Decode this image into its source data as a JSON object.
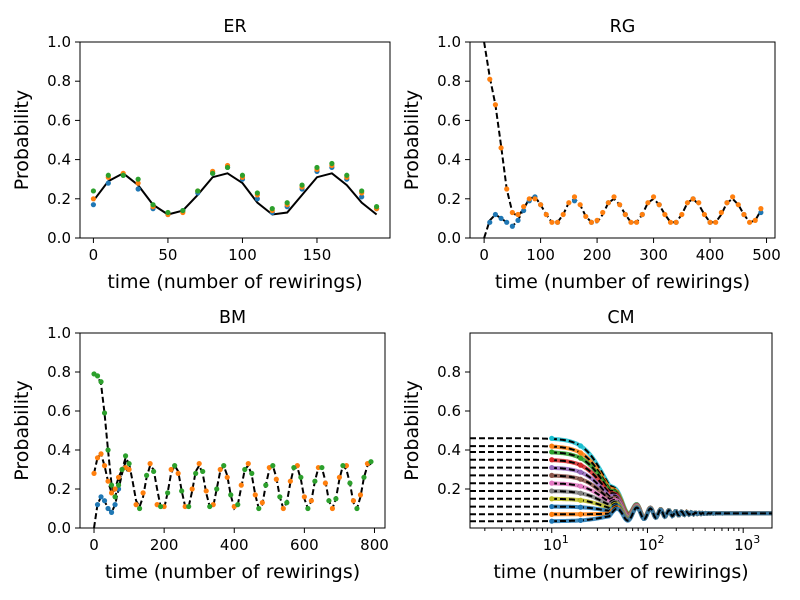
{
  "chart_data": [
    {
      "type": "line",
      "title": "ER",
      "xlabel": "time (number of rewirings)",
      "ylabel": "Probability",
      "xlim": [
        -9,
        199
      ],
      "ylim": [
        0,
        1
      ],
      "xscale": "linear",
      "xticks": [
        0,
        50,
        100,
        150
      ],
      "yticks": [
        0,
        0.2,
        0.4,
        0.6,
        0.8,
        1.0
      ],
      "x_tick_labels": [
        "0",
        "50",
        "100",
        "150"
      ],
      "y_tick_labels": [
        "0.0",
        "0.2",
        "0.4",
        "0.6",
        "0.8",
        "1.0"
      ],
      "series": [
        {
          "name": "model",
          "style": "solid",
          "color": "#000000",
          "x": [
            0,
            10,
            20,
            30,
            40,
            50,
            60,
            70,
            80,
            90,
            100,
            110,
            120,
            130,
            140,
            150,
            160,
            170,
            180,
            190
          ],
          "y": [
            0.19,
            0.29,
            0.33,
            0.27,
            0.17,
            0.12,
            0.14,
            0.22,
            0.31,
            0.33,
            0.28,
            0.18,
            0.12,
            0.13,
            0.22,
            0.31,
            0.33,
            0.27,
            0.18,
            0.12
          ]
        },
        {
          "name": "sim-blue",
          "style": "markers",
          "color": "#1f77b4",
          "x": [
            0,
            10,
            20,
            30,
            40,
            50,
            60,
            70,
            80,
            90,
            100,
            110,
            120,
            130,
            140,
            150,
            160,
            170,
            180,
            190
          ],
          "y": [
            0.17,
            0.28,
            0.32,
            0.25,
            0.15,
            0.12,
            0.14,
            0.23,
            0.33,
            0.36,
            0.3,
            0.2,
            0.13,
            0.16,
            0.25,
            0.34,
            0.36,
            0.3,
            0.21,
            0.15
          ]
        },
        {
          "name": "sim-orange",
          "style": "markers",
          "color": "#ff7f0e",
          "x": [
            0,
            10,
            20,
            30,
            40,
            50,
            60,
            70,
            80,
            90,
            100,
            110,
            120,
            130,
            140,
            150,
            160,
            170,
            180,
            190
          ],
          "y": [
            0.2,
            0.31,
            0.33,
            0.28,
            0.16,
            0.12,
            0.13,
            0.24,
            0.34,
            0.37,
            0.31,
            0.22,
            0.14,
            0.17,
            0.26,
            0.35,
            0.37,
            0.31,
            0.23,
            0.15
          ]
        },
        {
          "name": "sim-green",
          "style": "markers",
          "color": "#2ca02c",
          "x": [
            0,
            10,
            20,
            30,
            40,
            50,
            60,
            70,
            80,
            90,
            100,
            110,
            120,
            130,
            140,
            150,
            160,
            170,
            180,
            190
          ],
          "y": [
            0.24,
            0.32,
            0.32,
            0.3,
            0.17,
            0.13,
            0.14,
            0.24,
            0.33,
            0.36,
            0.32,
            0.23,
            0.15,
            0.18,
            0.27,
            0.36,
            0.38,
            0.32,
            0.24,
            0.16
          ]
        }
      ]
    },
    {
      "type": "line",
      "title": "RG",
      "xlabel": "time (number of rewirings)",
      "ylabel": "Probability",
      "xlim": [
        -25,
        515
      ],
      "ylim": [
        0,
        1
      ],
      "xscale": "linear",
      "xticks": [
        0,
        100,
        200,
        300,
        400,
        500
      ],
      "yticks": [
        0,
        0.2,
        0.4,
        0.6,
        0.8,
        1.0
      ],
      "x_tick_labels": [
        "0",
        "100",
        "200",
        "300",
        "400",
        "500"
      ],
      "y_tick_labels": [
        "0.0",
        "0.2",
        "0.4",
        "0.6",
        "0.8",
        "1.0"
      ],
      "series": [
        {
          "name": "model-high",
          "style": "dashed",
          "color": "#000000",
          "x": [
            0,
            10,
            20,
            30,
            40,
            50,
            60,
            70,
            80,
            90,
            100,
            110,
            120,
            130,
            140,
            150,
            160,
            170,
            180,
            190,
            200,
            210,
            220,
            230,
            240,
            250,
            260,
            270,
            280,
            290,
            300,
            310,
            320,
            330,
            340,
            350,
            360,
            370,
            380,
            390,
            400,
            410,
            420,
            430,
            440,
            450,
            460,
            470,
            480,
            490
          ],
          "y": [
            1.0,
            0.82,
            0.68,
            0.47,
            0.25,
            0.13,
            0.11,
            0.15,
            0.2,
            0.21,
            0.17,
            0.12,
            0.08,
            0.08,
            0.12,
            0.18,
            0.2,
            0.17,
            0.11,
            0.08,
            0.08,
            0.12,
            0.18,
            0.2,
            0.17,
            0.12,
            0.08,
            0.08,
            0.12,
            0.18,
            0.2,
            0.17,
            0.12,
            0.08,
            0.08,
            0.12,
            0.18,
            0.2,
            0.17,
            0.12,
            0.08,
            0.08,
            0.12,
            0.18,
            0.2,
            0.17,
            0.12,
            0.08,
            0.09,
            0.14
          ]
        },
        {
          "name": "model-low",
          "style": "dashed",
          "color": "#000000",
          "x": [
            0,
            10,
            20,
            30,
            40,
            50,
            60,
            70,
            80,
            90
          ],
          "y": [
            0.0,
            0.09,
            0.12,
            0.1,
            0.08,
            0.06,
            0.09,
            0.15,
            0.2,
            0.21
          ]
        },
        {
          "name": "sim-blue",
          "style": "markers",
          "color": "#1f77b4",
          "x": [
            10,
            20,
            30,
            40,
            50,
            60,
            70,
            80,
            90,
            100,
            130,
            160,
            190,
            220,
            250,
            280,
            310,
            340,
            370,
            400,
            430,
            460,
            490
          ],
          "y": [
            0.08,
            0.12,
            0.1,
            0.08,
            0.06,
            0.09,
            0.14,
            0.19,
            0.21,
            0.17,
            0.08,
            0.19,
            0.08,
            0.18,
            0.12,
            0.12,
            0.17,
            0.08,
            0.2,
            0.08,
            0.18,
            0.12,
            0.13
          ]
        },
        {
          "name": "sim-orange",
          "style": "markers",
          "color": "#ff7f0e",
          "x": [
            10,
            20,
            30,
            40,
            50,
            60,
            70,
            80,
            90,
            100,
            110,
            120,
            130,
            140,
            150,
            160,
            170,
            180,
            190,
            200,
            210,
            220,
            230,
            240,
            250,
            260,
            270,
            280,
            290,
            300,
            310,
            320,
            330,
            340,
            350,
            360,
            370,
            380,
            390,
            400,
            410,
            420,
            430,
            440,
            450,
            460,
            470,
            480,
            490
          ],
          "y": [
            0.81,
            0.68,
            0.46,
            0.25,
            0.13,
            0.12,
            0.16,
            0.2,
            0.2,
            0.17,
            0.12,
            0.08,
            0.08,
            0.12,
            0.18,
            0.21,
            0.17,
            0.11,
            0.08,
            0.09,
            0.13,
            0.18,
            0.21,
            0.17,
            0.12,
            0.08,
            0.08,
            0.12,
            0.18,
            0.21,
            0.17,
            0.12,
            0.08,
            0.08,
            0.12,
            0.18,
            0.2,
            0.18,
            0.12,
            0.08,
            0.08,
            0.13,
            0.18,
            0.21,
            0.17,
            0.12,
            0.08,
            0.09,
            0.15
          ]
        }
      ]
    },
    {
      "type": "line",
      "title": "BM",
      "xlabel": "time (number of rewirings)",
      "ylabel": "Probability",
      "xlim": [
        -40,
        830
      ],
      "ylim": [
        0,
        1
      ],
      "xscale": "linear",
      "xticks": [
        0,
        200,
        400,
        600,
        800
      ],
      "yticks": [
        0,
        0.2,
        0.4,
        0.6,
        0.8,
        1.0
      ],
      "x_tick_labels": [
        "0",
        "200",
        "400",
        "600",
        "800"
      ],
      "y_tick_labels": [
        "0.0",
        "0.2",
        "0.4",
        "0.6",
        "0.8",
        "1.0"
      ],
      "series": [
        {
          "name": "model-green",
          "style": "dashed",
          "color": "#000000",
          "x": [
            0,
            10,
            20,
            30,
            40,
            50,
            60,
            70,
            80,
            90,
            100
          ],
          "y": [
            0.8,
            0.78,
            0.74,
            0.59,
            0.4,
            0.22,
            0.16,
            0.22,
            0.3,
            0.36,
            0.33
          ]
        },
        {
          "name": "model-orange",
          "style": "dashed",
          "color": "#000000",
          "x": [
            0,
            10,
            20,
            30,
            40,
            50,
            60,
            70,
            80,
            90,
            100
          ],
          "y": [
            0.28,
            0.36,
            0.38,
            0.32,
            0.24,
            0.18,
            0.2,
            0.26,
            0.3,
            0.31,
            0.28
          ]
        },
        {
          "name": "model-blue",
          "style": "dashed",
          "color": "#000000",
          "x": [
            0,
            10,
            20,
            30,
            40,
            50,
            60,
            70,
            80,
            90,
            100,
            110,
            120,
            130,
            140,
            150,
            160,
            170,
            180,
            190,
            200,
            210,
            220,
            230,
            240,
            250,
            260,
            270,
            280,
            290,
            300,
            310,
            320,
            330,
            340,
            350,
            360,
            370,
            380,
            390,
            400,
            410,
            420,
            430,
            440,
            450,
            460,
            470,
            480,
            490,
            500,
            510,
            520,
            530,
            540,
            550,
            560,
            570,
            580,
            590,
            600,
            610,
            620,
            630,
            640,
            650,
            660,
            670,
            680,
            690,
            700,
            710,
            720,
            730,
            740,
            750,
            760,
            770,
            780,
            790
          ],
          "y": [
            0.0,
            0.12,
            0.16,
            0.14,
            0.1,
            0.08,
            0.12,
            0.2,
            0.28,
            0.34,
            0.33,
            0.24,
            0.14,
            0.11,
            0.16,
            0.26,
            0.32,
            0.3,
            0.2,
            0.11,
            0.1,
            0.18,
            0.28,
            0.32,
            0.29,
            0.19,
            0.11,
            0.11,
            0.19,
            0.29,
            0.32,
            0.28,
            0.18,
            0.11,
            0.11,
            0.2,
            0.29,
            0.32,
            0.27,
            0.17,
            0.1,
            0.12,
            0.21,
            0.3,
            0.32,
            0.27,
            0.17,
            0.1,
            0.12,
            0.22,
            0.3,
            0.32,
            0.26,
            0.16,
            0.1,
            0.13,
            0.23,
            0.31,
            0.31,
            0.25,
            0.15,
            0.1,
            0.14,
            0.24,
            0.31,
            0.31,
            0.24,
            0.14,
            0.1,
            0.15,
            0.25,
            0.32,
            0.3,
            0.23,
            0.13,
            0.1,
            0.16,
            0.26,
            0.32,
            0.33
          ]
        },
        {
          "name": "sim-blue",
          "style": "markers",
          "color": "#1f77b4",
          "x": [
            10,
            20,
            30,
            40,
            50,
            60,
            70
          ],
          "y": [
            0.12,
            0.16,
            0.14,
            0.1,
            0.08,
            0.12,
            0.2
          ]
        },
        {
          "name": "sim-orange",
          "style": "markers",
          "color": "#ff7f0e",
          "x": [
            0,
            10,
            20,
            30,
            40,
            50,
            60,
            70,
            80,
            90,
            100,
            120,
            140,
            160,
            180,
            200,
            220,
            240,
            260,
            280,
            300,
            320,
            340,
            360,
            380,
            400,
            420,
            440,
            460,
            480,
            500,
            520,
            540,
            560,
            580,
            600,
            620,
            640,
            660,
            680,
            700,
            720,
            740,
            760,
            780
          ],
          "y": [
            0.28,
            0.36,
            0.38,
            0.32,
            0.24,
            0.18,
            0.2,
            0.26,
            0.3,
            0.31,
            0.3,
            0.12,
            0.18,
            0.33,
            0.12,
            0.11,
            0.3,
            0.28,
            0.11,
            0.2,
            0.33,
            0.19,
            0.12,
            0.3,
            0.26,
            0.11,
            0.22,
            0.33,
            0.17,
            0.13,
            0.31,
            0.25,
            0.1,
            0.24,
            0.32,
            0.16,
            0.14,
            0.31,
            0.23,
            0.1,
            0.26,
            0.32,
            0.14,
            0.17,
            0.33
          ]
        },
        {
          "name": "sim-green",
          "style": "markers",
          "color": "#2ca02c",
          "x": [
            0,
            10,
            20,
            30,
            40,
            50,
            60,
            70,
            80,
            90,
            100,
            130,
            150,
            170,
            190,
            210,
            230,
            250,
            270,
            290,
            310,
            330,
            350,
            370,
            390,
            410,
            430,
            450,
            470,
            490,
            510,
            530,
            550,
            570,
            590,
            610,
            630,
            650,
            670,
            690,
            710,
            730,
            750,
            770,
            790
          ],
          "y": [
            0.79,
            0.78,
            0.75,
            0.59,
            0.4,
            0.22,
            0.16,
            0.22,
            0.3,
            0.37,
            0.33,
            0.1,
            0.27,
            0.29,
            0.11,
            0.18,
            0.32,
            0.19,
            0.11,
            0.28,
            0.29,
            0.11,
            0.2,
            0.32,
            0.17,
            0.12,
            0.3,
            0.28,
            0.1,
            0.22,
            0.32,
            0.16,
            0.13,
            0.31,
            0.26,
            0.1,
            0.24,
            0.31,
            0.14,
            0.15,
            0.32,
            0.23,
            0.1,
            0.26,
            0.34
          ]
        }
      ]
    },
    {
      "type": "line",
      "title": "CM",
      "xlabel": "time (number of rewirings)",
      "ylabel": "Probability",
      "xlim": [
        1.4,
        2000
      ],
      "ylim": [
        0,
        1
      ],
      "xscale": "log",
      "xticks": [
        10,
        100,
        1000
      ],
      "x_tick_labels": [
        "10",
        "10",
        "10"
      ],
      "x_tick_exponents": [
        "1",
        "2",
        "3"
      ],
      "yticks": [
        0.2,
        0.4,
        0.6,
        0.8
      ],
      "y_tick_labels": [
        "0.2",
        "0.4",
        "0.6",
        "0.8"
      ],
      "initial_levels": [
        0.46,
        0.42,
        0.39,
        0.35,
        0.31,
        0.27,
        0.23,
        0.19,
        0.15,
        0.11,
        0.07,
        0.035
      ],
      "final_level": 0.075,
      "colors": [
        "#17becf",
        "#ff7f0e",
        "#2ca02c",
        "#d62728",
        "#9467bd",
        "#8c564b",
        "#e377c2",
        "#7f7f7f",
        "#bcbd22",
        "#1f77b4",
        "#ff7f0e",
        "#1f77b4"
      ]
    }
  ]
}
